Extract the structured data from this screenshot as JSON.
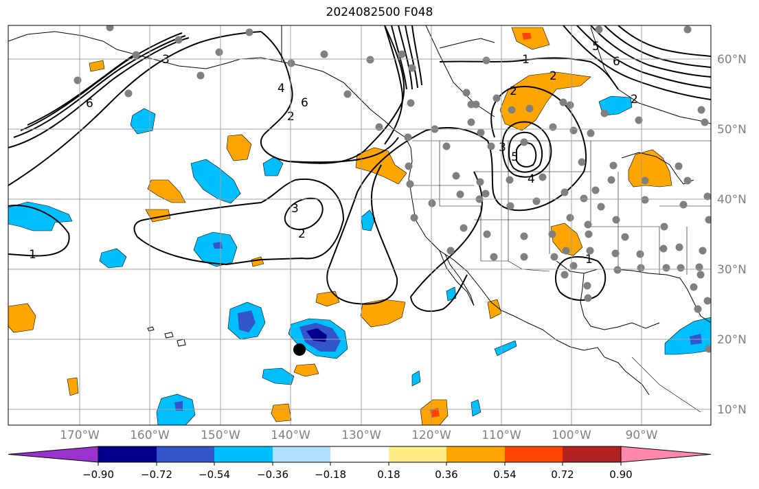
{
  "title": "2024082500 F048",
  "lon_labels": [
    "170°W",
    "160°W",
    "150°W",
    "140°W",
    "130°W",
    "120°W",
    "110°W",
    "100°W",
    "90°W"
  ],
  "lat_labels": [
    "60°N",
    "50°N",
    "40°N",
    "30°N",
    "20°N",
    "10°N"
  ],
  "contour_labels": [
    "1",
    "2",
    "3",
    "4",
    "5",
    "6"
  ],
  "colorbar": {
    "ticks": [
      "−0.90",
      "−0.72",
      "−0.54",
      "−0.36",
      "−0.18",
      "0.18",
      "0.36",
      "0.54",
      "0.72",
      "0.90"
    ],
    "colors": [
      "#9933cc",
      "#00008b",
      "#3355cc",
      "#00bfff",
      "#b0e0ff",
      "#ffffff",
      "#ffee88",
      "#ffa500",
      "#ff4400",
      "#b22222",
      "#ff88aa"
    ]
  },
  "colors": {
    "orange": "#ffa500",
    "red": "#ff4400",
    "cyan": "#00bfff",
    "blue": "#3355cc",
    "navy": "#00008b",
    "light_blue": "#b0e0ff",
    "station_dot": "#808080",
    "grid": "#a0a0a0"
  }
}
